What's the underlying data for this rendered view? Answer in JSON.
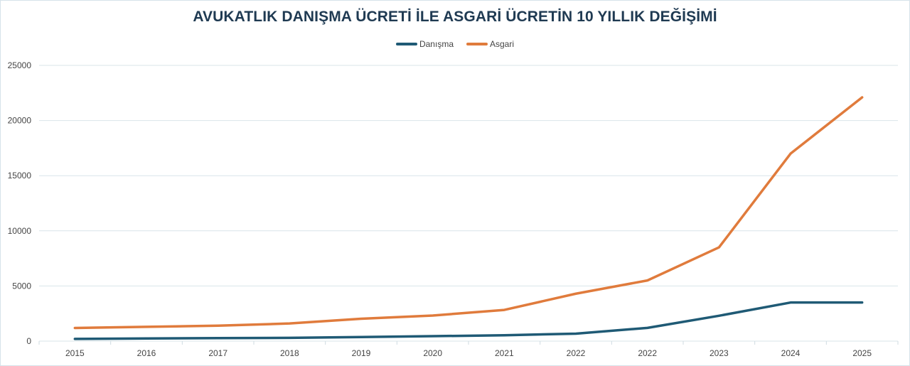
{
  "chart_data": {
    "type": "line",
    "title": "AVUKATLIK DANIŞMA ÜCRETİ İLE ASGARİ ÜCRETİN 10 YILLIK DEĞİŞİMİ",
    "xlabel": "",
    "ylabel": "",
    "categories": [
      "2015",
      "2016",
      "2017",
      "2018",
      "2019",
      "2020",
      "2021",
      "2022",
      "2022",
      "2023",
      "2024",
      "2025"
    ],
    "series": [
      {
        "name": "Danışma",
        "color": "#1f5a75",
        "values": [
          200,
          240,
          270,
          300,
          370,
          450,
          530,
          680,
          1200,
          2300,
          3500,
          3500
        ]
      },
      {
        "name": "Asgari",
        "color": "#e07b3c",
        "values": [
          1190,
          1300,
          1400,
          1600,
          2030,
          2320,
          2830,
          4300,
          5500,
          8500,
          17000,
          22100
        ]
      }
    ],
    "yticks": [
      "0",
      "5000",
      "10000",
      "15000",
      "20000",
      "25000"
    ],
    "ylim": [
      0,
      25000
    ],
    "grid": true,
    "legend_position": "top"
  },
  "title": "AVUKATLIK DANIŞMA ÜCRETİ İLE ASGARİ ÜCRETİN 10 YILLIK DEĞİŞİMİ",
  "legend": [
    {
      "label": "Danışma",
      "color": "#1f5a75"
    },
    {
      "label": "Asgari",
      "color": "#e07b3c"
    }
  ]
}
